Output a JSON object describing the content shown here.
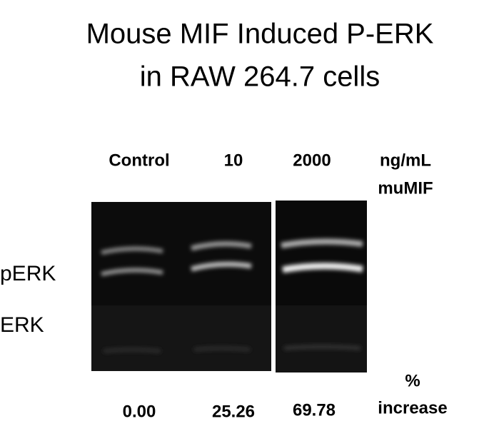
{
  "title": [
    "Mouse MIF Induced P-ERK",
    "in RAW 264.7 cells"
  ],
  "columns": [
    "Control",
    "10",
    "2000"
  ],
  "unit": [
    "ng/mL",
    "muMIF"
  ],
  "rows": [
    "pERK",
    "ERK"
  ],
  "percent_values": [
    "0.00",
    "25.26",
    "69.78"
  ],
  "percent_label": [
    "%",
    "increase"
  ]
}
